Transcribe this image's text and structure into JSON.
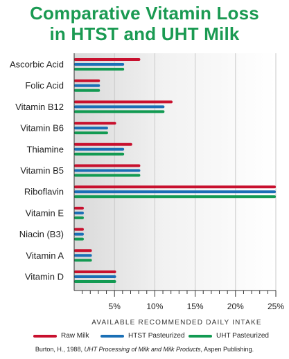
{
  "title_line1": "Comparative Vitamin Loss",
  "title_line2": "in HTST and UHT Milk",
  "source": {
    "prefix": "Burton, H., 1988, ",
    "italic": "UHT Processing of Milk and Milk Products",
    "suffix": ", Aspen Publishing."
  },
  "chart_data": {
    "type": "bar",
    "orientation": "horizontal",
    "title": "Comparative Vitamin Loss in HTST and UHT Milk",
    "xlabel": "AVAILABLE RECOMMENDED DAILY INTAKE",
    "ylabel": "",
    "xlim": [
      0,
      25
    ],
    "x_ticks": [
      "5%",
      "10%",
      "15%",
      "20%",
      "25%"
    ],
    "x_tick_values": [
      5,
      10,
      15,
      20,
      25
    ],
    "grid": true,
    "legend_position": "bottom",
    "categories": [
      "Ascorbic Acid",
      "Folic Acid",
      "Vitamin B12",
      "Vitamin B6",
      "Thiamine",
      "Vitamin B5",
      "Riboflavin",
      "Vitamin E",
      "Niacin (B3)",
      "Vitamin A",
      "Vitamin D"
    ],
    "series": [
      {
        "name": "Raw Milk",
        "color": "#c8102e",
        "values": [
          8.2,
          3.2,
          12.2,
          5.2,
          7.2,
          8.2,
          25,
          1.2,
          1.2,
          2.2,
          5.2
        ]
      },
      {
        "name": "HTST Pasteurized",
        "color": "#1a6fb5",
        "values": [
          6.2,
          3.2,
          11.2,
          4.2,
          6.2,
          8.2,
          25,
          1.2,
          1.2,
          2.2,
          5.2
        ]
      },
      {
        "name": "UHT Pasteurized",
        "color": "#129a52",
        "values": [
          6.2,
          3.2,
          11.2,
          4.2,
          6.2,
          8.2,
          25,
          1.2,
          1.2,
          2.2,
          5.2
        ]
      }
    ]
  }
}
